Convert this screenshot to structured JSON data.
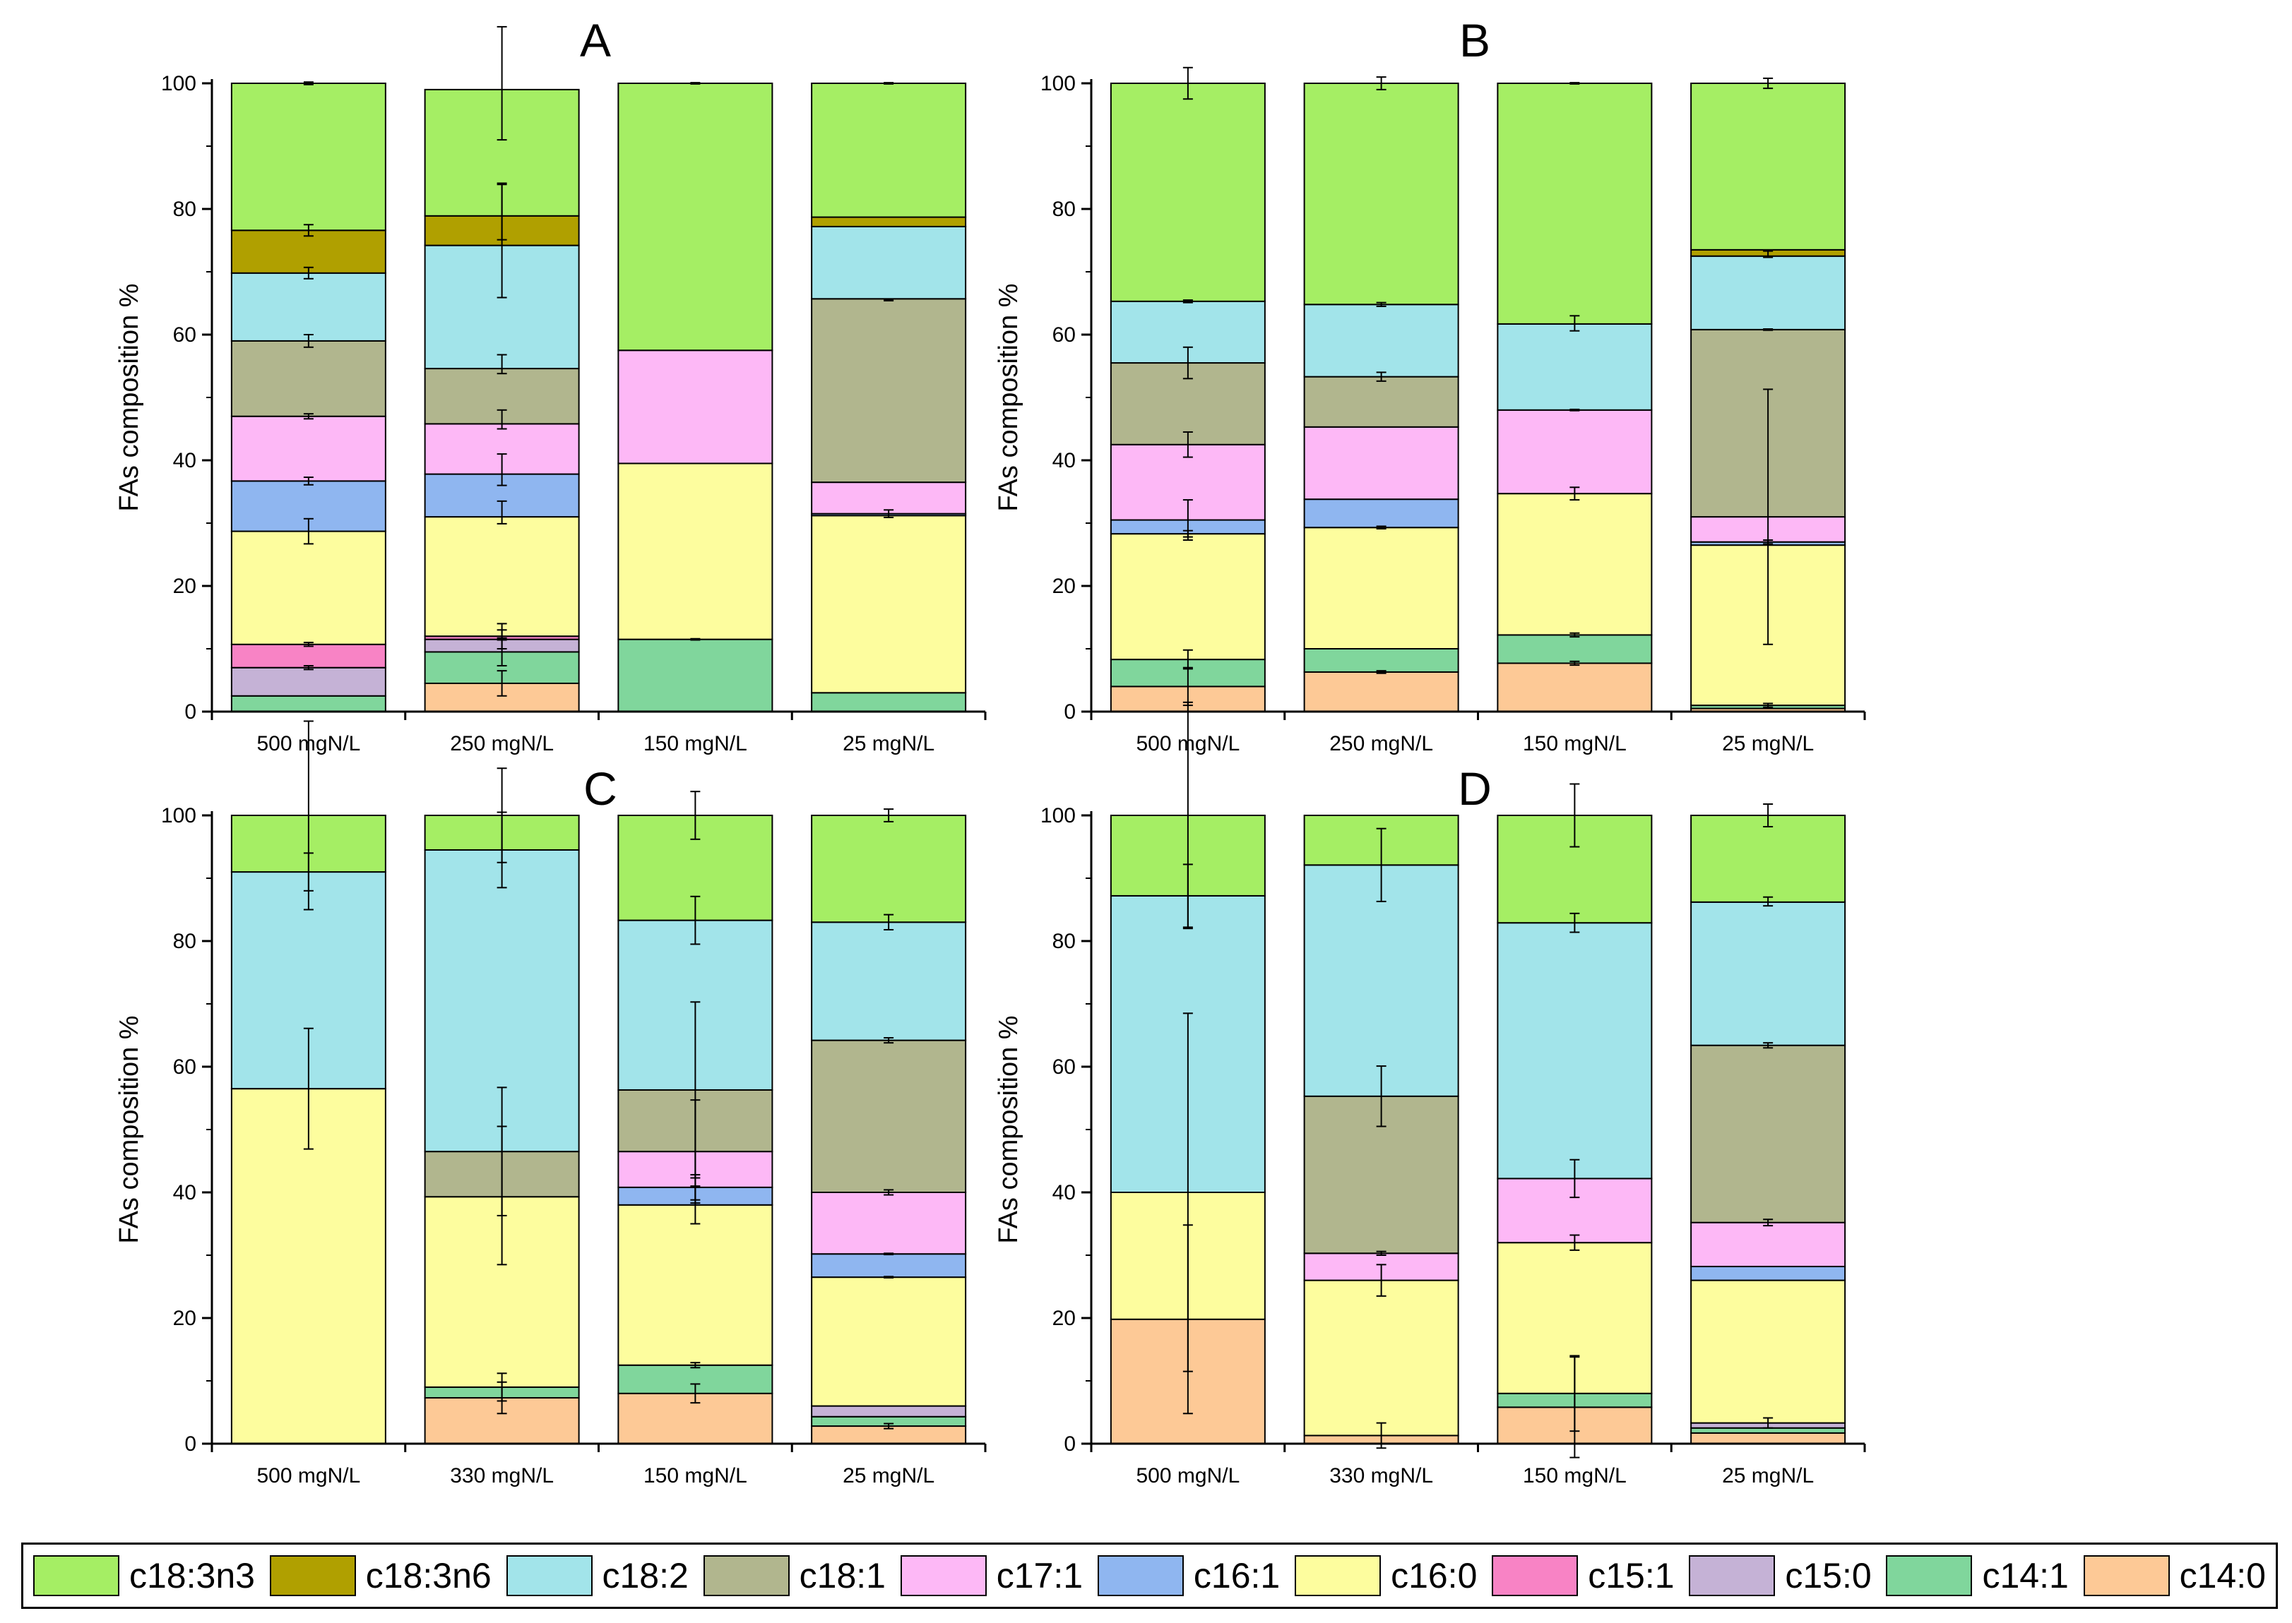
{
  "colors": {
    "c18:3n3": "#A5EE64",
    "c18:3n6": "#B0A000",
    "c18:2": "#A2E4EA",
    "c18:1": "#B1B68E",
    "c17:1": "#FDB8F6",
    "c16:1": "#8FB6F0",
    "c16:0": "#FDFD9E",
    "c15:1": "#F883C5",
    "c15:0": "#C5B2D6",
    "c14:1": "#80D69C",
    "c14:0": "#FDC996"
  },
  "legend": [
    "c18:3n3",
    "c18:3n6",
    "c18:2",
    "c18:1",
    "c17:1",
    "c16:1",
    "c16:0",
    "c15:1",
    "c15:0",
    "c14:1",
    "c14:0"
  ],
  "chart_data": [
    {
      "type": "bar",
      "stacked": true,
      "title": "A",
      "ylabel": "FAs composition %",
      "ylim": [
        0,
        100
      ],
      "yticks": [
        "0",
        "20",
        "40",
        "60",
        "80",
        "100"
      ],
      "categories": [
        "500 mgN/L",
        "250 mgN/L",
        "150 mgN/L",
        "25 mgN/L"
      ],
      "series": [
        {
          "name": "c14:0",
          "values": [
            0,
            4.5,
            0,
            0
          ]
        },
        {
          "name": "c14:1",
          "values": [
            2.5,
            5,
            11.5,
            3
          ]
        },
        {
          "name": "c15:0",
          "values": [
            4.5,
            2,
            0,
            0
          ]
        },
        {
          "name": "c15:1",
          "values": [
            3.7,
            0.5,
            0,
            0
          ]
        },
        {
          "name": "c16:0",
          "values": [
            18,
            19,
            28,
            28.2
          ]
        },
        {
          "name": "c16:1",
          "values": [
            8,
            6.8,
            0,
            0.3
          ]
        },
        {
          "name": "c17:1",
          "values": [
            10.3,
            8,
            18,
            5
          ]
        },
        {
          "name": "c18:1",
          "values": [
            12,
            8.8,
            0,
            29.2
          ]
        },
        {
          "name": "c18:2",
          "values": [
            10.8,
            19.6,
            0,
            11.5
          ]
        },
        {
          "name": "c18:3n6",
          "values": [
            6.8,
            4.7,
            0,
            1.5
          ]
        },
        {
          "name": "c18:3n3",
          "values": [
            23.4,
            20.1,
            42.5,
            21.3
          ]
        }
      ],
      "errors": [
        {
          "category": "500 mgN/L",
          "y": 100,
          "err": 0.2
        },
        {
          "category": "500 mgN/L",
          "y": 76.6,
          "err": 0.9
        },
        {
          "category": "500 mgN/L",
          "y": 69.8,
          "err": 0.9
        },
        {
          "category": "500 mgN/L",
          "y": 59,
          "err": 1
        },
        {
          "category": "500 mgN/L",
          "y": 47,
          "err": 0.4
        },
        {
          "category": "500 mgN/L",
          "y": 36.7,
          "err": 0.6
        },
        {
          "category": "500 mgN/L",
          "y": 28.7,
          "err": 2
        },
        {
          "category": "500 mgN/L",
          "y": 10.7,
          "err": 0.3
        },
        {
          "category": "500 mgN/L",
          "y": 7,
          "err": 0.3
        },
        {
          "category": "250 mgN/L",
          "y": 100,
          "err": 9
        },
        {
          "category": "250 mgN/L",
          "y": 79.6,
          "err": 4.5
        },
        {
          "category": "250 mgN/L",
          "y": 74.9,
          "err": 9
        },
        {
          "category": "250 mgN/L",
          "y": 55.3,
          "err": 1.5
        },
        {
          "category": "250 mgN/L",
          "y": 46.5,
          "err": 1.5
        },
        {
          "category": "250 mgN/L",
          "y": 38.5,
          "err": 2.5
        },
        {
          "category": "250 mgN/L",
          "y": 31.7,
          "err": 1.8
        },
        {
          "category": "250 mgN/L",
          "y": 12.7,
          "err": 1.3
        },
        {
          "category": "250 mgN/L",
          "y": 11.5,
          "err": 1.5
        },
        {
          "category": "250 mgN/L",
          "y": 9.5,
          "err": 2.2
        },
        {
          "category": "250 mgN/L",
          "y": 4.5,
          "err": 2
        },
        {
          "category": "150 mgN/L",
          "y": 100,
          "err": 0.1
        },
        {
          "category": "150 mgN/L",
          "y": 11.5,
          "err": 0.1
        },
        {
          "category": "25 mgN/L",
          "y": 100,
          "err": 0.1
        },
        {
          "category": "25 mgN/L",
          "y": 65.5,
          "err": 0.1
        },
        {
          "category": "25 mgN/L",
          "y": 31.5,
          "err": 0.6
        }
      ]
    },
    {
      "type": "bar",
      "stacked": true,
      "title": "B",
      "ylabel": "FAs composition %",
      "ylim": [
        0,
        100
      ],
      "yticks": [
        "0",
        "20",
        "40",
        "60",
        "80",
        "100"
      ],
      "categories": [
        "500 mgN/L",
        "250 mgN/L",
        "150 mgN/L",
        "25 mgN/L"
      ],
      "series": [
        {
          "name": "c14:0",
          "values": [
            4,
            6.3,
            7.7,
            0.5
          ]
        },
        {
          "name": "c14:1",
          "values": [
            4.3,
            3.7,
            4.5,
            0.5
          ]
        },
        {
          "name": "c15:0",
          "values": [
            0,
            0,
            0,
            0
          ]
        },
        {
          "name": "c15:1",
          "values": [
            0,
            0,
            0,
            0
          ]
        },
        {
          "name": "c16:0",
          "values": [
            20,
            19.3,
            22.5,
            25.5
          ]
        },
        {
          "name": "c16:1",
          "values": [
            2.2,
            4.5,
            0,
            0.5
          ]
        },
        {
          "name": "c17:1",
          "values": [
            12,
            11.5,
            13.3,
            4
          ]
        },
        {
          "name": "c18:1",
          "values": [
            13,
            8,
            0,
            29.8
          ]
        },
        {
          "name": "c18:2",
          "values": [
            9.8,
            11.5,
            13.7,
            11.7
          ]
        },
        {
          "name": "c18:3n6",
          "values": [
            0,
            0,
            0,
            1
          ]
        },
        {
          "name": "c18:3n3",
          "values": [
            34.7,
            35.2,
            38.3,
            26.5
          ]
        }
      ],
      "errors": [
        {
          "category": "500 mgN/L",
          "y": 100,
          "err": 2.5
        },
        {
          "category": "500 mgN/L",
          "y": 65.3,
          "err": 0.2
        },
        {
          "category": "500 mgN/L",
          "y": 55.5,
          "err": 2.5
        },
        {
          "category": "500 mgN/L",
          "y": 42.5,
          "err": 2
        },
        {
          "category": "500 mgN/L",
          "y": 30.5,
          "err": 3.2
        },
        {
          "category": "500 mgN/L",
          "y": 28.3,
          "err": 0.5
        },
        {
          "category": "500 mgN/L",
          "y": 8.3,
          "err": 1.5
        },
        {
          "category": "500 mgN/L",
          "y": 4,
          "err": 3
        },
        {
          "category": "250 mgN/L",
          "y": 100,
          "err": 1
        },
        {
          "category": "250 mgN/L",
          "y": 64.8,
          "err": 0.3
        },
        {
          "category": "250 mgN/L",
          "y": 53.3,
          "err": 0.7
        },
        {
          "category": "250 mgN/L",
          "y": 29.3,
          "err": 0.2
        },
        {
          "category": "250 mgN/L",
          "y": 6.3,
          "err": 0.2
        },
        {
          "category": "150 mgN/L",
          "y": 100,
          "err": 0.1
        },
        {
          "category": "150 mgN/L",
          "y": 61.8,
          "err": 1.2
        },
        {
          "category": "150 mgN/L",
          "y": 48,
          "err": 0.1
        },
        {
          "category": "150 mgN/L",
          "y": 34.7,
          "err": 1
        },
        {
          "category": "150 mgN/L",
          "y": 12.2,
          "err": 0.3
        },
        {
          "category": "150 mgN/L",
          "y": 7.7,
          "err": 0.3
        },
        {
          "category": "25 mgN/L",
          "y": 100,
          "err": 0.8
        },
        {
          "category": "25 mgN/L",
          "y": 72.8,
          "err": 0.5
        },
        {
          "category": "25 mgN/L",
          "y": 60.8,
          "err": 0.1
        },
        {
          "category": "25 mgN/L",
          "y": 31,
          "err": 20.3
        },
        {
          "category": "25 mgN/L",
          "y": 27,
          "err": 0.3
        },
        {
          "category": "25 mgN/L",
          "y": 1,
          "err": 0.3
        }
      ]
    },
    {
      "type": "bar",
      "stacked": true,
      "title": "C",
      "ylabel": "FAs composition %",
      "ylim": [
        0,
        100
      ],
      "yticks": [
        "0",
        "20",
        "40",
        "60",
        "80",
        "100"
      ],
      "categories": [
        "500 mgN/L",
        "330 mgN/L",
        "150 mgN/L",
        "25 mgN/L"
      ],
      "series": [
        {
          "name": "c14:0",
          "values": [
            0,
            7.3,
            8,
            2.8
          ]
        },
        {
          "name": "c14:1",
          "values": [
            0,
            1.7,
            4.5,
            1.5
          ]
        },
        {
          "name": "c15:0",
          "values": [
            0,
            0,
            0,
            1.7
          ]
        },
        {
          "name": "c15:1",
          "values": [
            0,
            0,
            0,
            0
          ]
        },
        {
          "name": "c16:0",
          "values": [
            56.5,
            30.3,
            25.5,
            20.5
          ]
        },
        {
          "name": "c16:1",
          "values": [
            0,
            0,
            2.8,
            3.7
          ]
        },
        {
          "name": "c17:1",
          "values": [
            0,
            0,
            5.7,
            9.8
          ]
        },
        {
          "name": "c18:1",
          "values": [
            0,
            7.2,
            9.8,
            24.2
          ]
        },
        {
          "name": "c18:2",
          "values": [
            34.5,
            48,
            27,
            18.8
          ]
        },
        {
          "name": "c18:3n6",
          "values": [
            0,
            0,
            0,
            0
          ]
        },
        {
          "name": "c18:3n3",
          "values": [
            9,
            5.5,
            16.7,
            17
          ]
        }
      ],
      "errors": [
        {
          "category": "500 mgN/L",
          "y": 100,
          "err": 15
        },
        {
          "category": "500 mgN/L",
          "y": 91,
          "err": 3
        },
        {
          "category": "500 mgN/L",
          "y": 56.5,
          "err": 9.6
        },
        {
          "category": "330 mgN/L",
          "y": 100,
          "err": 7.5
        },
        {
          "category": "330 mgN/L",
          "y": 94.5,
          "err": 6
        },
        {
          "category": "330 mgN/L",
          "y": 46.5,
          "err": 10.2
        },
        {
          "category": "330 mgN/L",
          "y": 39.5,
          "err": 11
        },
        {
          "category": "330 mgN/L",
          "y": 9,
          "err": 2.2
        },
        {
          "category": "330 mgN/L",
          "y": 7.3,
          "err": 2.5
        },
        {
          "category": "150 mgN/L",
          "y": 100,
          "err": 3.8
        },
        {
          "category": "150 mgN/L",
          "y": 83.3,
          "err": 3.8
        },
        {
          "category": "150 mgN/L",
          "y": 56.3,
          "err": 14
        },
        {
          "category": "150 mgN/L",
          "y": 46.5,
          "err": 8.2
        },
        {
          "category": "150 mgN/L",
          "y": 40.8,
          "err": 2
        },
        {
          "category": "150 mgN/L",
          "y": 38,
          "err": 3
        },
        {
          "category": "150 mgN/L",
          "y": 12.5,
          "err": 0.4
        },
        {
          "category": "150 mgN/L",
          "y": 8,
          "err": 1.5
        },
        {
          "category": "25 mgN/L",
          "y": 100,
          "err": 1
        },
        {
          "category": "25 mgN/L",
          "y": 83,
          "err": 1.2
        },
        {
          "category": "25 mgN/L",
          "y": 64.2,
          "err": 0.4
        },
        {
          "category": "25 mgN/L",
          "y": 40,
          "err": 0.4
        },
        {
          "category": "25 mgN/L",
          "y": 30.2,
          "err": 0.1
        },
        {
          "category": "25 mgN/L",
          "y": 26.5,
          "err": 0.1
        },
        {
          "category": "25 mgN/L",
          "y": 2.8,
          "err": 0.4
        }
      ]
    },
    {
      "type": "bar",
      "stacked": true,
      "title": "D",
      "ylabel": "FAs composition %",
      "ylim": [
        0,
        100
      ],
      "yticks": [
        "0",
        "20",
        "40",
        "60",
        "80",
        "100"
      ],
      "categories": [
        "500 mgN/L",
        "330 mgN/L",
        "150 mgN/L",
        "25 mgN/L"
      ],
      "series": [
        {
          "name": "c14:0",
          "values": [
            19.8,
            1.3,
            5.8,
            1.7
          ]
        },
        {
          "name": "c14:1",
          "values": [
            0,
            0,
            2.2,
            0.8
          ]
        },
        {
          "name": "c15:0",
          "values": [
            0,
            0,
            0,
            0.8
          ]
        },
        {
          "name": "c15:1",
          "values": [
            0,
            0,
            0,
            0
          ]
        },
        {
          "name": "c16:0",
          "values": [
            20.2,
            24.7,
            24,
            22.7
          ]
        },
        {
          "name": "c16:1",
          "values": [
            0,
            0,
            0,
            2.2
          ]
        },
        {
          "name": "c17:1",
          "values": [
            0,
            4.3,
            10.2,
            7
          ]
        },
        {
          "name": "c18:1",
          "values": [
            0,
            25,
            0,
            28.2
          ]
        },
        {
          "name": "c18:2",
          "values": [
            47.2,
            36.8,
            40.7,
            22.8
          ]
        },
        {
          "name": "c18:3n6",
          "values": [
            0,
            0,
            0,
            0
          ]
        },
        {
          "name": "c18:3n3",
          "values": [
            12.8,
            7.9,
            17.1,
            13.8
          ]
        }
      ],
      "errors": [
        {
          "category": "500 mgN/L",
          "y": 100,
          "err": 18
        },
        {
          "category": "500 mgN/L",
          "y": 87.2,
          "err": 5
        },
        {
          "category": "500 mgN/L",
          "y": 40,
          "err": 28.5
        },
        {
          "category": "500 mgN/L",
          "y": 19.8,
          "err": 15
        },
        {
          "category": "330 mgN/L",
          "y": 92.1,
          "err": 5.8
        },
        {
          "category": "330 mgN/L",
          "y": 55.3,
          "err": 4.8
        },
        {
          "category": "330 mgN/L",
          "y": 30.3,
          "err": 0.3
        },
        {
          "category": "330 mgN/L",
          "y": 26,
          "err": 2.5
        },
        {
          "category": "330 mgN/L",
          "y": 1.3,
          "err": 2
        },
        {
          "category": "150 mgN/L",
          "y": 100,
          "err": 5
        },
        {
          "category": "150 mgN/L",
          "y": 82.9,
          "err": 1.5
        },
        {
          "category": "150 mgN/L",
          "y": 42.2,
          "err": 3
        },
        {
          "category": "150 mgN/L",
          "y": 32,
          "err": 1.2
        },
        {
          "category": "150 mgN/L",
          "y": 8,
          "err": 6
        },
        {
          "category": "150 mgN/L",
          "y": 5.8,
          "err": 8
        },
        {
          "category": "25 mgN/L",
          "y": 100,
          "err": 1.8
        },
        {
          "category": "25 mgN/L",
          "y": 86.3,
          "err": 0.7
        },
        {
          "category": "25 mgN/L",
          "y": 63.4,
          "err": 0.4
        },
        {
          "category": "25 mgN/L",
          "y": 35.2,
          "err": 0.5
        },
        {
          "category": "25 mgN/L",
          "y": 3.3,
          "err": 0.8
        }
      ]
    }
  ]
}
